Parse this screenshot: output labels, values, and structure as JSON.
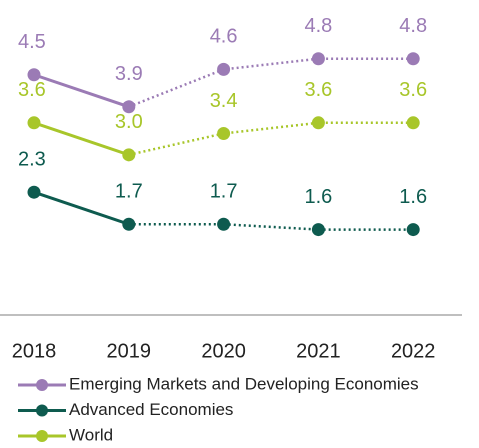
{
  "chart_data": {
    "type": "line",
    "categories": [
      "2018",
      "2019",
      "2020",
      "2021",
      "2022"
    ],
    "series": [
      {
        "name": "Emerging Markets and Developing Economies",
        "color": "#9b7bb5",
        "values": [
          4.5,
          3.9,
          4.6,
          4.8,
          4.8
        ],
        "value_labels": [
          "4.5",
          "3.9",
          "4.6",
          "4.8",
          "4.8"
        ]
      },
      {
        "name": "Advanced Economies",
        "color": "#0e5b4f",
        "values": [
          2.3,
          1.7,
          1.7,
          1.6,
          1.6
        ],
        "value_labels": [
          "2.3",
          "1.7",
          "1.7",
          "1.6",
          "1.6"
        ]
      },
      {
        "name": "World",
        "color": "#a8c62a",
        "values": [
          3.6,
          3.0,
          3.4,
          3.6,
          3.6
        ],
        "value_labels": [
          "3.6",
          "3.0",
          "3.4",
          "3.6",
          "3.6"
        ]
      }
    ],
    "ylim": [
      0,
      5.9
    ],
    "dotted_from": 1,
    "legend": "bottom-left"
  }
}
